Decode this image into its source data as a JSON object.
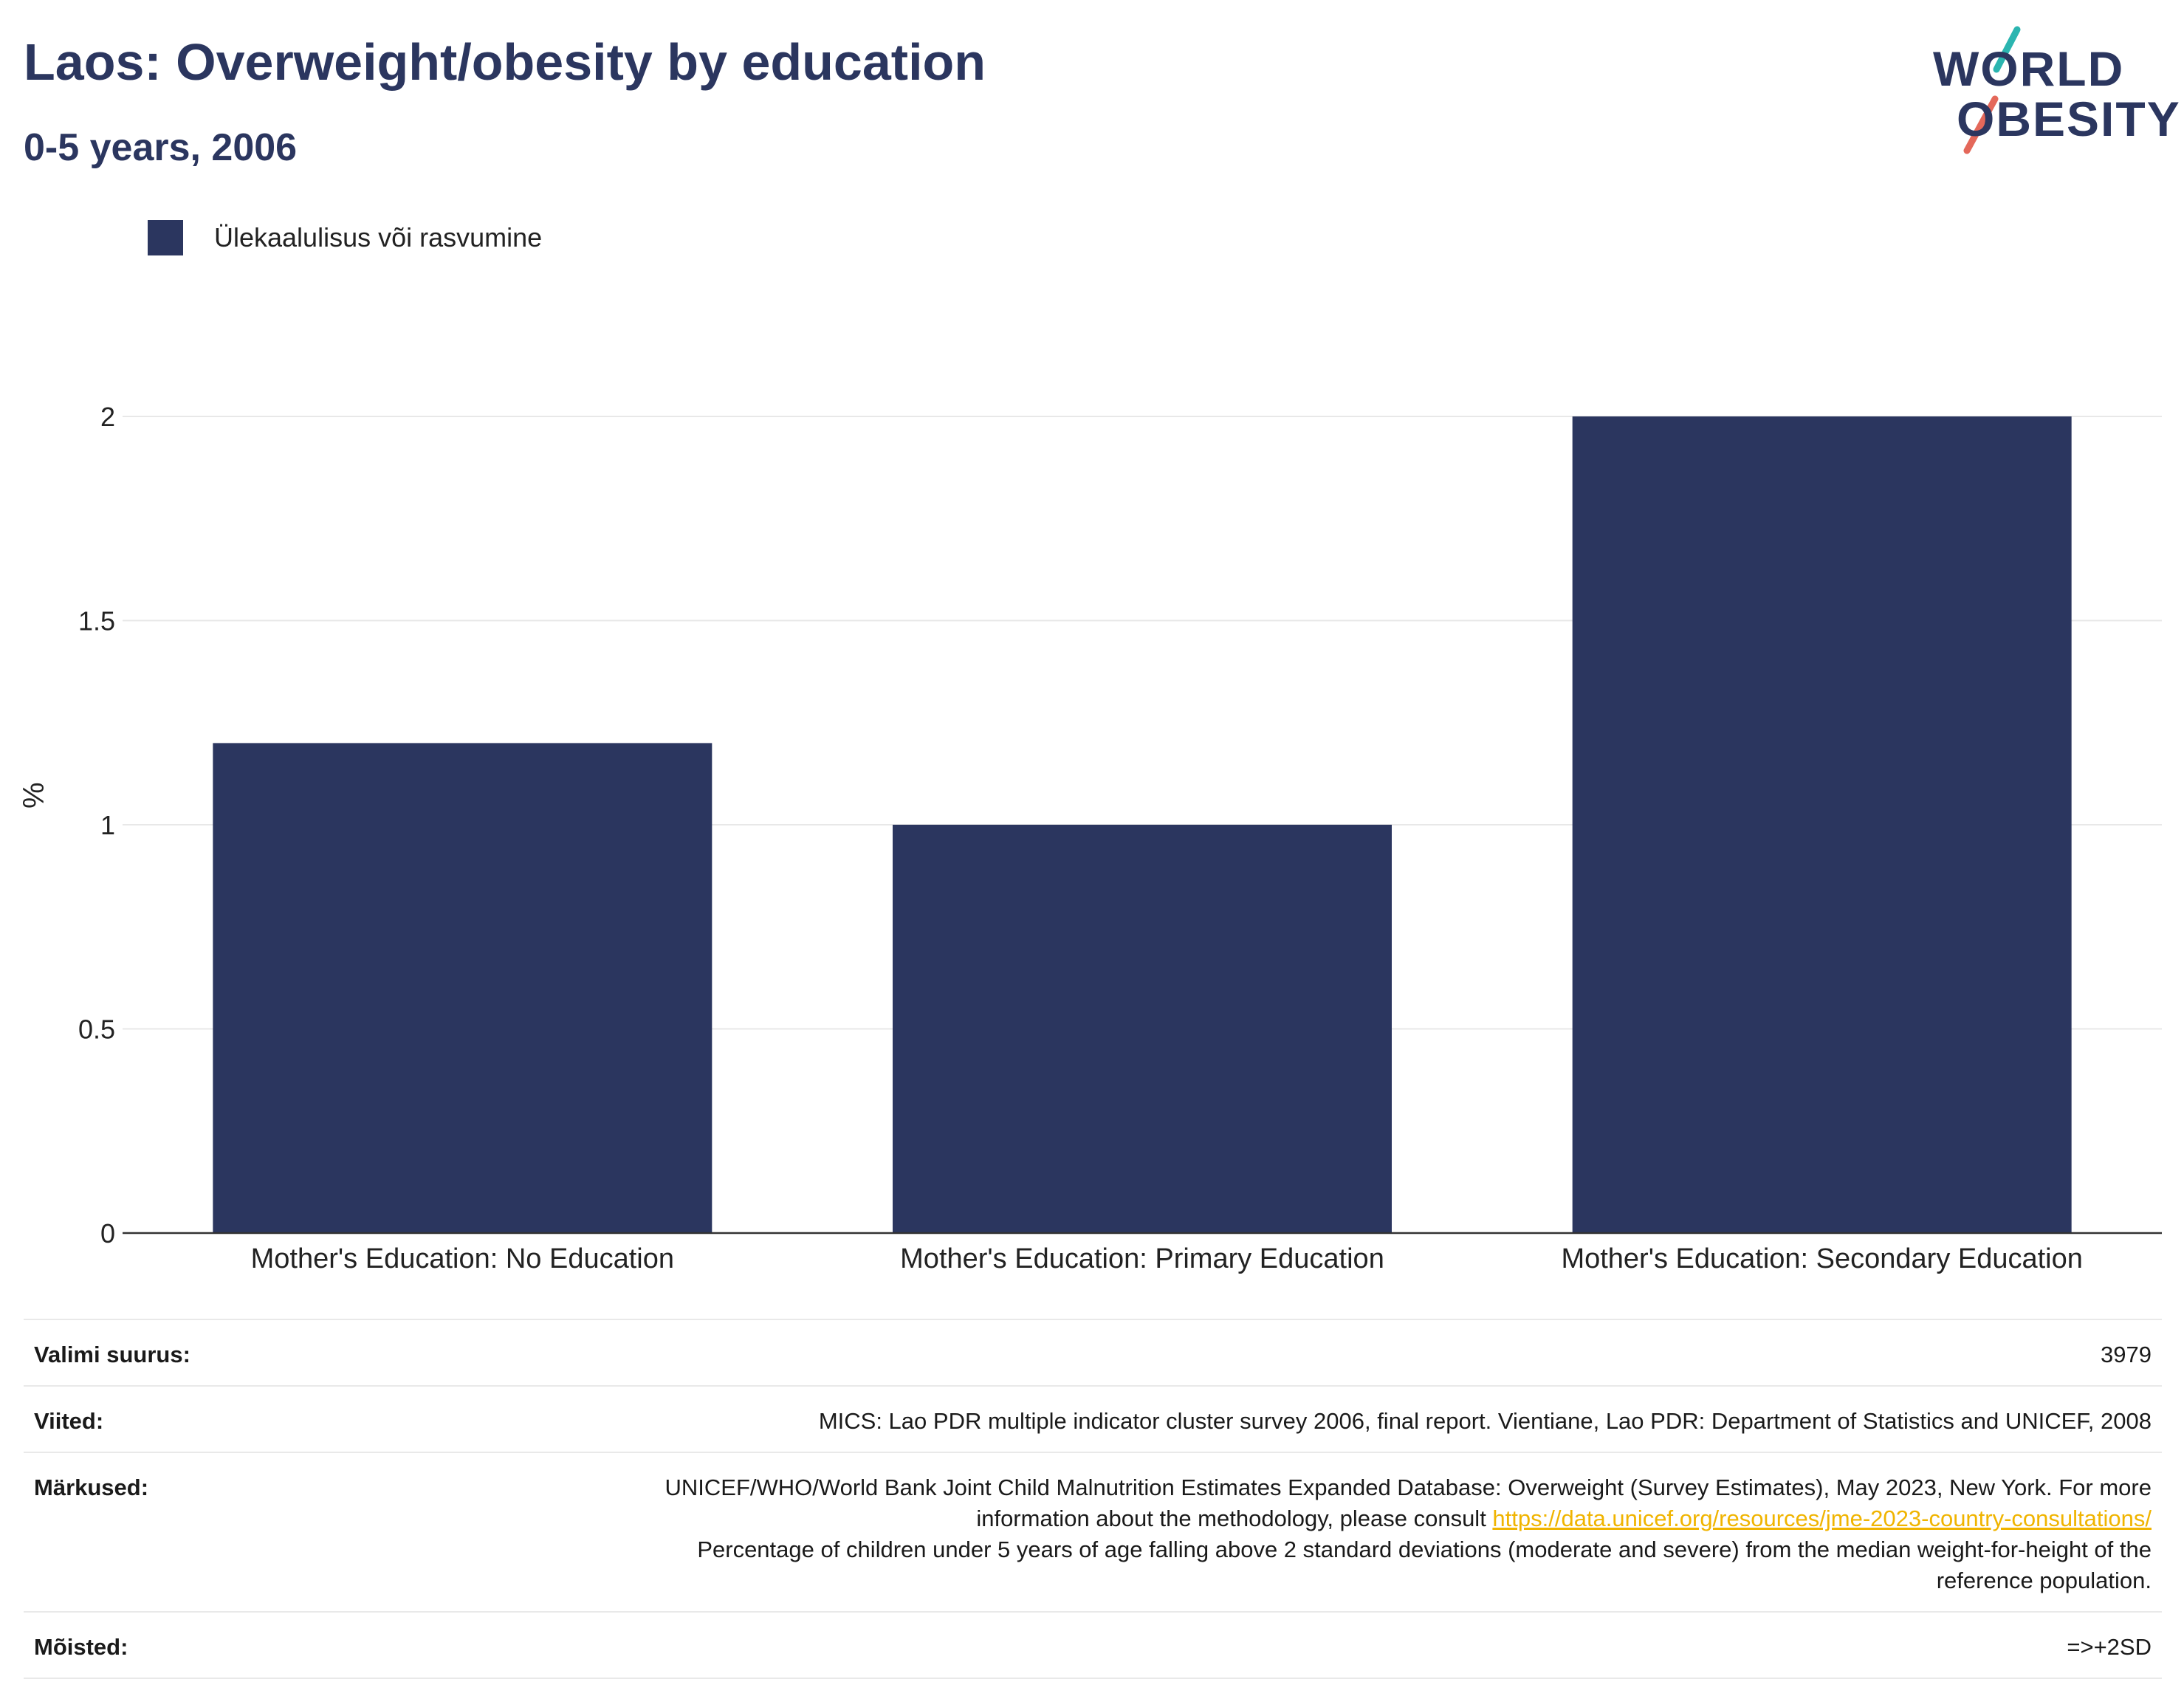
{
  "header": {
    "title": "Laos: Overweight/obesity by education",
    "subtitle": "0-5 years, 2006"
  },
  "logo": {
    "line1": "WORLD",
    "line2": "OBESITY",
    "accent_colors": [
      "#2bb5b0",
      "#e4685a"
    ]
  },
  "legend": {
    "label": "Ülekaalulisus või rasvumine"
  },
  "chart_data": {
    "type": "bar",
    "categories": [
      "Mother's Education: No Education",
      "Mother's Education: Primary Education",
      "Mother's Education: Secondary Education"
    ],
    "series": [
      {
        "name": "Ülekaalulisus või rasvumine",
        "values": [
          1.2,
          1.0,
          2.0
        ],
        "color": "#2b365f"
      }
    ],
    "ylabel": "%",
    "ylim": [
      0,
      2.3
    ],
    "yticks": [
      0,
      0.5,
      1,
      1.5,
      2
    ],
    "ytick_labels": [
      "0",
      "0.5",
      "1",
      "1.5",
      "2"
    ],
    "grid": true,
    "legend_position": "top-left"
  },
  "info": {
    "sample_label": "Valimi suurus:",
    "sample_value": "3979",
    "refs_label": "Viited:",
    "refs_value": "MICS: Lao PDR multiple indicator cluster survey 2006, final report. Vientiane, Lao PDR: Department of Statistics and UNICEF, 2008",
    "notes_label": "Märkused:",
    "notes_text_1": "UNICEF/WHO/World Bank Joint Child Malnutrition Estimates Expanded Database: Overweight (Survey Estimates), May 2023, New York. For more information about the methodology, please consult ",
    "notes_link": "https://data.unicef.org/resources/jme-2023-country-consultations/",
    "notes_text_2": "Percentage of children under 5 years of age falling above 2 standard deviations (moderate and severe) from the median weight-for-height of the reference population.",
    "defs_label": "Mõisted:",
    "defs_value": "=>+2SD"
  }
}
